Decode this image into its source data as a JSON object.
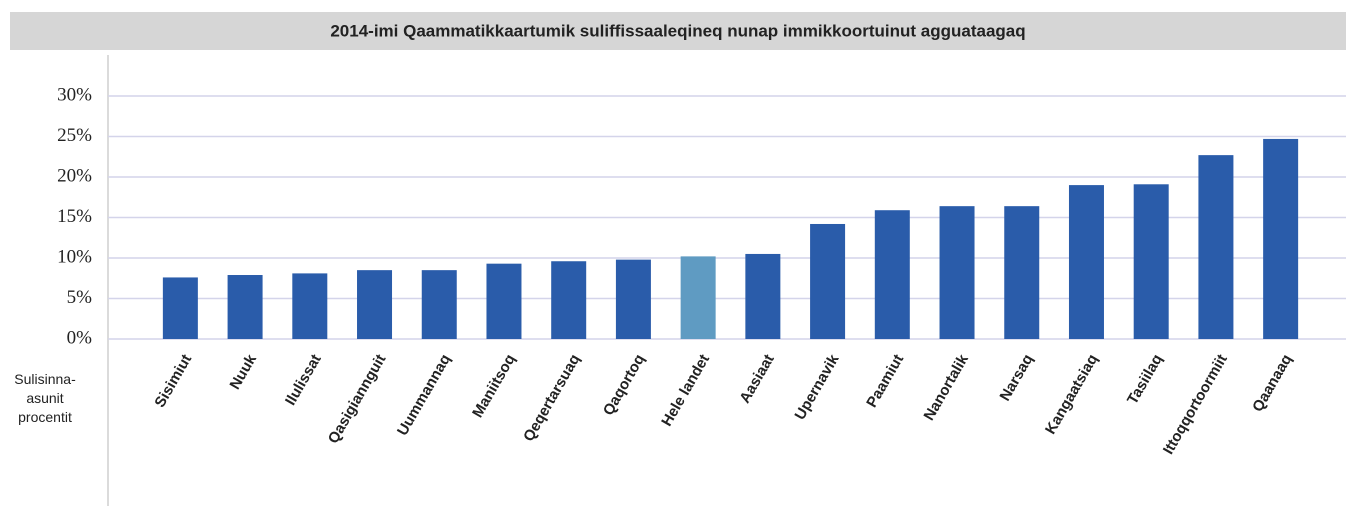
{
  "chart_data": {
    "type": "bar",
    "title": "2014-imi Qaammatikkaartumik suliffissaaleqineq nunap immikkoortuinut agguataagaq",
    "y_label": "Sulisinna-asunit procentit",
    "categories": [
      "Sisimiut",
      "Nuuk",
      "Ilulissat",
      "Qasigiannguit",
      "Uummannaq",
      "Maniitsoq",
      "Qeqertarsuaq",
      "Qaqortoq",
      "Hele landet",
      "Aasiaat",
      "Upernavik",
      "Paamiut",
      "Nanortalik",
      "Narsaq",
      "Kangaatsiaq",
      "Tasiilaq",
      "Ittoqqortoormiit",
      "Qaanaaq"
    ],
    "values": [
      7.6,
      7.9,
      8.1,
      8.5,
      8.5,
      9.3,
      9.6,
      9.8,
      10.2,
      10.5,
      14.2,
      15.9,
      16.4,
      16.4,
      19.0,
      19.1,
      22.7,
      24.7
    ],
    "colors": [
      "#2a5caa",
      "#2a5caa",
      "#2a5caa",
      "#2a5caa",
      "#2a5caa",
      "#2a5caa",
      "#2a5caa",
      "#2a5caa",
      "#5f9bc2",
      "#2a5caa",
      "#2a5caa",
      "#2a5caa",
      "#2a5caa",
      "#2a5caa",
      "#2a5caa",
      "#2a5caa",
      "#2a5caa",
      "#2a5caa"
    ],
    "ylim": [
      0,
      30
    ],
    "yticks": [
      {
        "value": 0,
        "label": "0%"
      },
      {
        "value": 5,
        "label": "5%"
      },
      {
        "value": 10,
        "label": "10%"
      },
      {
        "value": 15,
        "label": "15%"
      },
      {
        "value": 20,
        "label": "20%"
      },
      {
        "value": 25,
        "label": "25%"
      },
      {
        "value": 30,
        "label": "30%"
      }
    ],
    "grid": true
  }
}
